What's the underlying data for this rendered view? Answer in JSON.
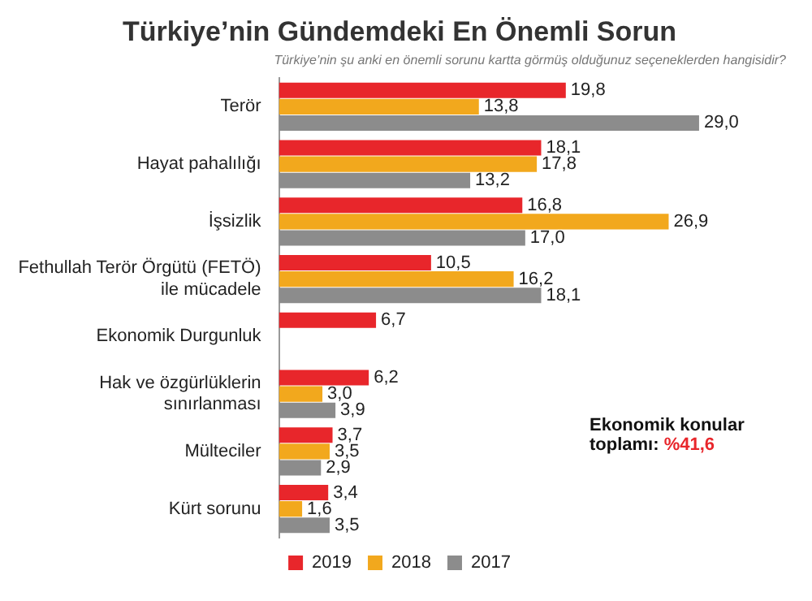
{
  "chart_data": {
    "type": "bar",
    "orientation": "horizontal",
    "title": "Türkiye’nin Gündemdeki En Önemli Sorun",
    "subtitle": "Türkiye’nin şu anki en önemli sorunu kartta görmüş olduğunuz seçeneklerden hangisidir?",
    "categories": [
      "Terör",
      "Hayat pahalılığı",
      "İşsizlik",
      "Fethullah Terör Örgütü (FETÖ) ile mücadele",
      "Ekonomik Durgunluk",
      "Hak ve özgürlüklerin sınırlanması",
      "Mülteciler",
      "Kürt sorunu"
    ],
    "series": [
      {
        "name": "2019",
        "color": "#e8262b",
        "values": [
          19.8,
          18.1,
          16.8,
          10.5,
          6.7,
          6.2,
          3.7,
          3.4
        ],
        "value_labels": [
          "19,8",
          "18,1",
          "16,8",
          "10,5",
          "6,7",
          "6,2",
          "3,7",
          "3,4"
        ]
      },
      {
        "name": "2018",
        "color": "#f2a81d",
        "values": [
          13.8,
          17.8,
          26.9,
          16.2,
          null,
          3.0,
          3.5,
          1.6
        ],
        "value_labels": [
          "13,8",
          "17,8",
          "26,9",
          "16,2",
          null,
          "3,0",
          "3,5",
          "1,6"
        ]
      },
      {
        "name": "2017",
        "color": "#8c8c8c",
        "values": [
          29.0,
          13.2,
          17.0,
          18.1,
          null,
          3.9,
          2.9,
          3.5
        ],
        "value_labels": [
          "29,0",
          "13,2",
          "17,0",
          "18,1",
          null,
          "3,9",
          "2,9",
          "3,5"
        ]
      }
    ],
    "annotations": [
      "Ekonomik konular toplamı:",
      "%41,6"
    ],
    "legend": "bottom",
    "tick_labels": "y"
  }
}
